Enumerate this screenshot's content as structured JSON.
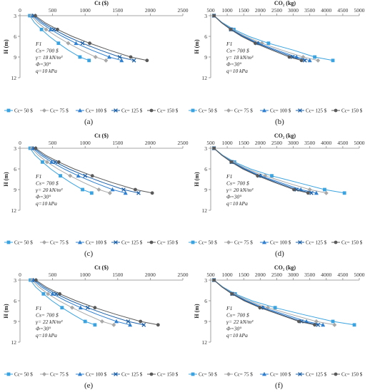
{
  "colors": {
    "Cc= 50 $": "#3aa3e0",
    "Cc= 75 $": "#a8a8a8",
    "Cc= 100 $": "#2f7fd0",
    "Cc= 125 $": "#1b5fa8",
    "Cc= 150 $": "#595959"
  },
  "markers": {
    "Cc= 50 $": "square",
    "Cc= 75 $": "diamond",
    "Cc= 100 $": "triangle",
    "Cc= 125 $": "x",
    "Cc= 150 $": "circle"
  },
  "legend": [
    "Cc= 50 $",
    "Cc= 75 $",
    "Cc= 100 $",
    "Cc= 125 $",
    "Cc= 150 $"
  ],
  "chart_data": [
    {
      "type": "line",
      "panel": "(a)",
      "xlabel": "Ct ($)",
      "ylabel": "H (m)",
      "xlim": [
        0,
        2500
      ],
      "ylim": [
        3,
        12
      ],
      "xticks": [
        0,
        500,
        1000,
        1500,
        2000,
        2500
      ],
      "yticks": [
        3,
        6,
        9,
        12
      ],
      "annotation": [
        "F1",
        "Cs= 700 $",
        "γ= 18 kN/m³",
        "Φ=30°",
        "q=10 kPa"
      ],
      "x": [
        3,
        4,
        5,
        6,
        7,
        8,
        9,
        9.5
      ],
      "series": [
        {
          "name": "Cc= 50 $",
          "values": [
            150,
            220,
            330,
            450,
            590,
            740,
            920,
            1060
          ]
        },
        {
          "name": "Cc= 75 $",
          "values": [
            175,
            270,
            400,
            560,
            740,
            940,
            1160,
            1320
          ]
        },
        {
          "name": "Cc= 100 $",
          "values": [
            195,
            310,
            470,
            650,
            860,
            1100,
            1370,
            1560
          ]
        },
        {
          "name": "Cc= 125 $",
          "values": [
            215,
            345,
            520,
            720,
            960,
            1230,
            1530,
            1750
          ]
        },
        {
          "name": "Cc= 150 $",
          "values": [
            235,
            380,
            575,
            800,
            1070,
            1370,
            1700,
            1950
          ]
        }
      ]
    },
    {
      "type": "line",
      "panel": "(b)",
      "xlabel": "CO₂ (kg)",
      "ylabel": "H (m)",
      "xlim": [
        500,
        5000
      ],
      "ylim": [
        3,
        12
      ],
      "xticks": [
        500,
        1000,
        1500,
        2000,
        2500,
        3000,
        3500,
        4000,
        4500,
        5000
      ],
      "yticks": [
        3,
        6,
        9,
        12
      ],
      "annotation": [
        "F1",
        "Cs= 700 $",
        "γ= 18 kN/m³",
        "Φ=30°",
        "q=10 kPa"
      ],
      "x": [
        3,
        4,
        5,
        6,
        7,
        8,
        9,
        9.5
      ],
      "series": [
        {
          "name": "Cc= 50 $",
          "values": [
            600,
            850,
            1200,
            1650,
            2250,
            3000,
            3650,
            4200
          ]
        },
        {
          "name": "Cc= 75 $",
          "values": [
            600,
            840,
            1150,
            1550,
            2050,
            2650,
            3300,
            3750
          ]
        },
        {
          "name": "Cc= 100 $",
          "values": [
            600,
            830,
            1130,
            1500,
            1950,
            2500,
            3100,
            3500
          ]
        },
        {
          "name": "Cc= 125 $",
          "values": [
            600,
            825,
            1110,
            1460,
            1900,
            2420,
            2980,
            3350
          ]
        },
        {
          "name": "Cc= 150 $",
          "values": [
            600,
            820,
            1100,
            1430,
            1850,
            2350,
            2880,
            3250
          ]
        }
      ]
    },
    {
      "type": "line",
      "panel": "(c)",
      "xlabel": "Ct ($)",
      "ylabel": "H (m)",
      "xlim": [
        0,
        2500
      ],
      "ylim": [
        3,
        12
      ],
      "xticks": [
        0,
        500,
        1000,
        1500,
        2000,
        2500
      ],
      "yticks": [
        3,
        6,
        9,
        12
      ],
      "annotation": [
        "F1",
        "Cs= 700 $",
        "γ= 20 kN/m³",
        "Φ=30°",
        "q=10 kPa"
      ],
      "x": [
        3,
        4,
        5,
        6,
        7,
        8,
        9,
        9.5
      ],
      "series": [
        {
          "name": "Cc= 50 $",
          "values": [
            155,
            230,
            345,
            470,
            620,
            780,
            960,
            1100
          ]
        },
        {
          "name": "Cc= 75 $",
          "values": [
            180,
            280,
            415,
            580,
            770,
            980,
            1210,
            1380
          ]
        },
        {
          "name": "Cc= 100 $",
          "values": [
            200,
            320,
            485,
            675,
            895,
            1145,
            1420,
            1620
          ]
        },
        {
          "name": "Cc= 125 $",
          "values": [
            220,
            355,
            540,
            750,
            1000,
            1280,
            1590,
            1820
          ]
        },
        {
          "name": "Cc= 150 $",
          "values": [
            240,
            390,
            595,
            830,
            1110,
            1420,
            1770,
            2030
          ]
        }
      ]
    },
    {
      "type": "line",
      "panel": "(d)",
      "xlabel": "CO₂ (kg)",
      "ylabel": "H (m)",
      "xlim": [
        500,
        5000
      ],
      "ylim": [
        3,
        12
      ],
      "xticks": [
        500,
        1000,
        1500,
        2000,
        2500,
        3000,
        3500,
        4000,
        4500,
        5000
      ],
      "yticks": [
        3,
        6,
        9,
        12
      ],
      "annotation": [
        "F1",
        "Cs= 700 $",
        "γ= 20 kN/m³",
        "Φ=30°",
        "q=10 kPa"
      ],
      "x": [
        3,
        4,
        5,
        6,
        7,
        8,
        9,
        9.5
      ],
      "series": [
        {
          "name": "Cc= 50 $",
          "values": [
            600,
            860,
            1220,
            1700,
            2350,
            3150,
            3950,
            4550
          ]
        },
        {
          "name": "Cc= 75 $",
          "values": [
            600,
            850,
            1180,
            1600,
            2150,
            2800,
            3500,
            4000
          ]
        },
        {
          "name": "Cc= 100 $",
          "values": [
            600,
            840,
            1150,
            1540,
            2020,
            2620,
            3230,
            3700
          ]
        },
        {
          "name": "Cc= 125 $",
          "values": [
            600,
            835,
            1130,
            1500,
            1960,
            2520,
            3100,
            3550
          ]
        },
        {
          "name": "Cc= 150 $",
          "values": [
            600,
            830,
            1120,
            1470,
            1920,
            2450,
            3020,
            3450
          ]
        }
      ]
    },
    {
      "type": "line",
      "panel": "(e)",
      "xlabel": "Ct ($)",
      "ylabel": "H (m)",
      "xlim": [
        0,
        2500
      ],
      "ylim": [
        3,
        12
      ],
      "xticks": [
        0,
        500,
        1000,
        1500,
        2000,
        2500
      ],
      "yticks": [
        3,
        6,
        9,
        12
      ],
      "annotation": [
        "F1",
        "Cs= 700 $",
        "γ= 22 kN/m³",
        "Φ=30°",
        "q=10 kPa"
      ],
      "x": [
        3,
        4,
        5,
        6,
        7,
        8,
        9,
        9.5
      ],
      "series": [
        {
          "name": "Cc= 50 $",
          "values": [
            160,
            240,
            360,
            490,
            645,
            815,
            1000,
            1150
          ]
        },
        {
          "name": "Cc= 75 $",
          "values": [
            185,
            290,
            430,
            600,
            800,
            1020,
            1260,
            1440
          ]
        },
        {
          "name": "Cc= 100 $",
          "values": [
            205,
            330,
            500,
            700,
            930,
            1190,
            1480,
            1690
          ]
        },
        {
          "name": "Cc= 125 $",
          "values": [
            225,
            365,
            555,
            780,
            1040,
            1330,
            1660,
            1900
          ]
        },
        {
          "name": "Cc= 150 $",
          "values": [
            245,
            400,
            610,
            860,
            1150,
            1480,
            1850,
            2120
          ]
        }
      ]
    },
    {
      "type": "line",
      "panel": "(f)",
      "xlabel": "CO₂ (kg)",
      "ylabel": "H (m)",
      "xlim": [
        500,
        5000
      ],
      "ylim": [
        3,
        12
      ],
      "xticks": [
        500,
        1000,
        1500,
        2000,
        2500,
        3000,
        3500,
        4000,
        4500,
        5000
      ],
      "yticks": [
        3,
        6,
        9,
        12
      ],
      "annotation": [
        "F1",
        "Cs= 700 $",
        "γ= 22 kN/m³",
        "Φ=30°",
        "q=10 kPa"
      ],
      "x": [
        3,
        4,
        5,
        6,
        7,
        8,
        9,
        9.5
      ],
      "series": [
        {
          "name": "Cc= 50 $",
          "values": [
            600,
            870,
            1240,
            1750,
            2450,
            3300,
            4200,
            4850
          ]
        },
        {
          "name": "Cc= 75 $",
          "values": [
            600,
            860,
            1200,
            1650,
            2230,
            2950,
            3700,
            4250
          ]
        },
        {
          "name": "Cc= 100 $",
          "values": [
            600,
            850,
            1170,
            1580,
            2100,
            2750,
            3400,
            3900
          ]
        },
        {
          "name": "Cc= 125 $",
          "values": [
            600,
            845,
            1150,
            1540,
            2030,
            2640,
            3250,
            3750
          ]
        },
        {
          "name": "Cc= 150 $",
          "values": [
            600,
            840,
            1140,
            1510,
            1990,
            2580,
            3170,
            3650
          ]
        }
      ]
    }
  ]
}
